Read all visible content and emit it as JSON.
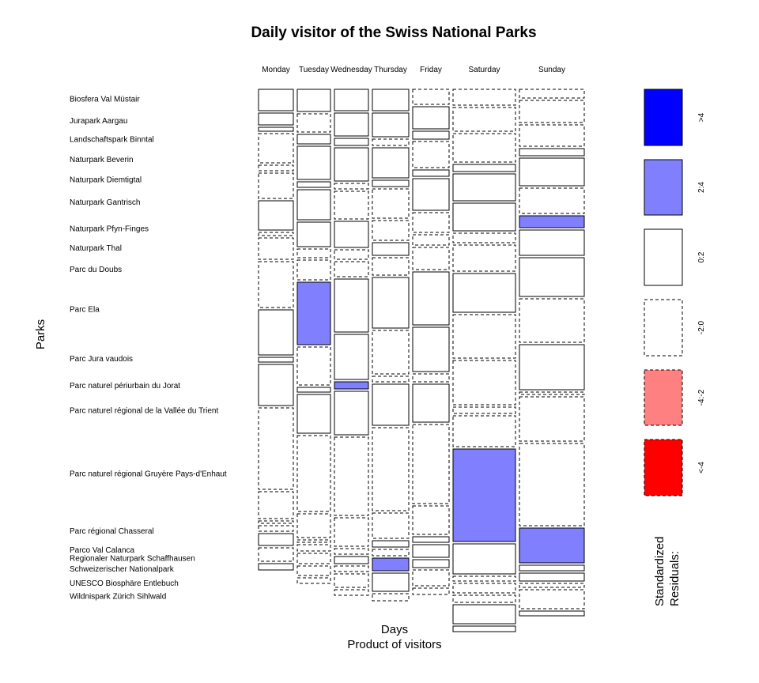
{
  "chart_data": {
    "type": "mosaic",
    "title": "Daily visitor of the Swiss National Parks",
    "xlabel": "Days",
    "xlabel2": "Product of visitors",
    "ylabel": "Parks",
    "legend_title": "Standardized Residuals:",
    "days": [
      "Monday",
      "Tuesday",
      "Wednesday",
      "Thursday",
      "Friday",
      "Saturday",
      "Sunday"
    ],
    "day_widths": [
      44,
      42,
      43,
      46,
      46,
      79,
      82
    ],
    "parks": [
      "Biosfera Val Müstair",
      "Jurapark Aargau",
      "Landschaftspark Binntal",
      "Naturpark Beverin",
      "Naturpark Diemtigtal",
      "Naturpark Gantrisch",
      "Naturpark Pfyn-Finges",
      "Naturpark Thal",
      "Parc du Doubs",
      "Parc Ela",
      "Parc Jura vaudois",
      "Parc naturel périurbain du Jorat",
      "Parc naturel régional de la Vallée du Trient",
      "Parc naturel régional Gruyère Pays-d'Enhaut",
      "Parc régional Chasseral",
      "Parco Val Calanca",
      "Regionaler Naturpark Schaffhausen",
      "Schweizerischer Nationalpark",
      "UNESCO Biosphäre Entlebuch",
      "Wildnispark Zürich Sihlwald"
    ],
    "cell_heights": [
      [
        27,
        15,
        5,
        37,
        7,
        32,
        37,
        4,
        27,
        58,
        57,
        6,
        52,
        103,
        34,
        3,
        7,
        15,
        17,
        8
      ],
      [
        28,
        23,
        12,
        42,
        7,
        38,
        31,
        11,
        25,
        79,
        48,
        6,
        49,
        96,
        30,
        3,
        8,
        13,
        12,
        7
      ],
      [
        27,
        29,
        9,
        42,
        7,
        35,
        33,
        12,
        19,
        67,
        57,
        9,
        55,
        99,
        36,
        7,
        9,
        7,
        17,
        7
      ],
      [
        27,
        30,
        8,
        38,
        8,
        37,
        25,
        16,
        22,
        64,
        55,
        7,
        52,
        105,
        32,
        8,
        8,
        16,
        23,
        9
      ],
      [
        19,
        28,
        10,
        33,
        8,
        40,
        25,
        13,
        28,
        67,
        56,
        10,
        48,
        100,
        36,
        7,
        16,
        10,
        20,
        8
      ],
      [
        20,
        30,
        36,
        9,
        34,
        35,
        12,
        33,
        49,
        55,
        56,
        8,
        39,
        117,
        38,
        6,
        12,
        9,
        24,
        7
      ],
      [
        11,
        28,
        27,
        9,
        35,
        32,
        15,
        32,
        49,
        55,
        57,
        3,
        56,
        104,
        44,
        7,
        10,
        5,
        24,
        6
      ]
    ],
    "cell_residual_class": [
      [
        "0:2",
        "0:2",
        "0:2",
        "-2:0",
        "-2:0",
        "-2:0",
        "0:2",
        "-2:0",
        "-2:0",
        "-2:0",
        "0:2",
        "0:2",
        "0:2",
        "-2:0",
        "-2:0",
        "-2:0",
        "-2:0",
        "0:2",
        "-2:0",
        "0:2"
      ],
      [
        "0:2",
        "-2:0",
        "0:2",
        "0:2",
        "0:2",
        "0:2",
        "0:2",
        "-2:0",
        "-2:0",
        "2:4",
        "-2:0",
        "0:2",
        "0:2",
        "-2:0",
        "-2:0",
        "-2:0",
        "-2:0",
        "-2:0",
        "-2:0",
        "-2:0"
      ],
      [
        "0:2",
        "0:2",
        "0:2",
        "0:2",
        "-2:0",
        "-2:0",
        "0:2",
        "-2:0",
        "-2:0",
        "0:2",
        "0:2",
        "2:4",
        "0:2",
        "-2:0",
        "-2:0",
        "-2:0",
        "0:2",
        "-2:0",
        "-2:0",
        "-2:0"
      ],
      [
        "0:2",
        "0:2",
        "-2:0",
        "0:2",
        "0:2",
        "-2:0",
        "-2:0",
        "0:2",
        "-2:0",
        "0:2",
        "-2:0",
        "-2:0",
        "0:2",
        "-2:0",
        "-2:0",
        "0:2",
        "-2:0",
        "2:4",
        "0:2",
        "-2:0"
      ],
      [
        "-2:0",
        "0:2",
        "0:2",
        "-2:0",
        "0:2",
        "0:2",
        "-2:0",
        "-2:0",
        "-2:0",
        "0:2",
        "0:2",
        "-2:0",
        "0:2",
        "-2:0",
        "-2:0",
        "0:2",
        "0:2",
        "0:2",
        "-2:0",
        "-2:0"
      ],
      [
        "-2:0",
        "-2:0",
        "-2:0",
        "0:2",
        "0:2",
        "0:2",
        "-2:0",
        "-2:0",
        "0:2",
        "-2:0",
        "-2:0",
        "-2:0",
        "-2:0",
        "2:4",
        "0:2",
        "-2:0",
        "-2:0",
        "-2:0",
        "0:2",
        "0:2"
      ],
      [
        "-2:0",
        "-2:0",
        "-2:0",
        "0:2",
        "0:2",
        "-2:0",
        "2:4",
        "0:2",
        "0:2",
        "-2:0",
        "0:2",
        "-2:0",
        "-2:0",
        "-2:0",
        "2:4",
        "0:2",
        "0:2",
        "-2:0",
        "-2:0",
        "0:2"
      ]
    ],
    "legend": [
      {
        "label": ">4",
        "color": "#0000ff",
        "border": "solid"
      },
      {
        "label": "2:4",
        "color": "#8080ff",
        "border": "solid"
      },
      {
        "label": "0:2",
        "color": "#ffffff",
        "border": "solid"
      },
      {
        "label": "-2:0",
        "color": "#ffffff",
        "border": "dashed"
      },
      {
        "label": "-4:-2",
        "color": "#ff8080",
        "border": "dashed"
      },
      {
        "label": "<-4",
        "color": "#ff0000",
        "border": "dashed"
      }
    ]
  }
}
